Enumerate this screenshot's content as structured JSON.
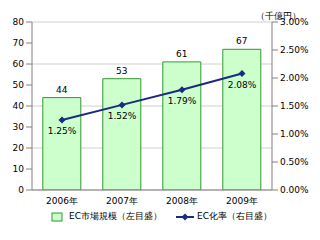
{
  "chart_data": {
    "type": "bar",
    "ylabel": "（千億円）",
    "categories": [
      "2006年",
      "2007年",
      "2008年",
      "2009年"
    ],
    "series": [
      {
        "name": "EC市場規模（左目盛）",
        "type": "bar",
        "color": "#ccffcc",
        "values": [
          44,
          53,
          61,
          67
        ]
      },
      {
        "name": "EC化率（右目盛）",
        "type": "line",
        "axis": "y2",
        "color": "#1a2a80",
        "marker": "diamond",
        "values": [
          1.25,
          1.52,
          1.79,
          2.08
        ],
        "value_labels": [
          "1.25%",
          "1.52%",
          "1.79%",
          "2.08%"
        ]
      }
    ],
    "ylim": [
      0,
      80
    ],
    "yticks": [
      0,
      10,
      20,
      30,
      40,
      50,
      60,
      70,
      80
    ],
    "y2lim": [
      0,
      3
    ],
    "y2ticks": [
      {
        "value": 0,
        "label": "0.00%"
      },
      {
        "value": 0.5,
        "label": "0.50%"
      },
      {
        "value": 1,
        "label": "1.00%"
      },
      {
        "value": 1.5,
        "label": "1.50%"
      },
      {
        "value": 2,
        "label": "2.00%"
      },
      {
        "value": 2.5,
        "label": "2.50%"
      },
      {
        "value": 3,
        "label": "3.00%"
      }
    ],
    "grid": true,
    "data_labels": true,
    "legend": "bottom"
  }
}
